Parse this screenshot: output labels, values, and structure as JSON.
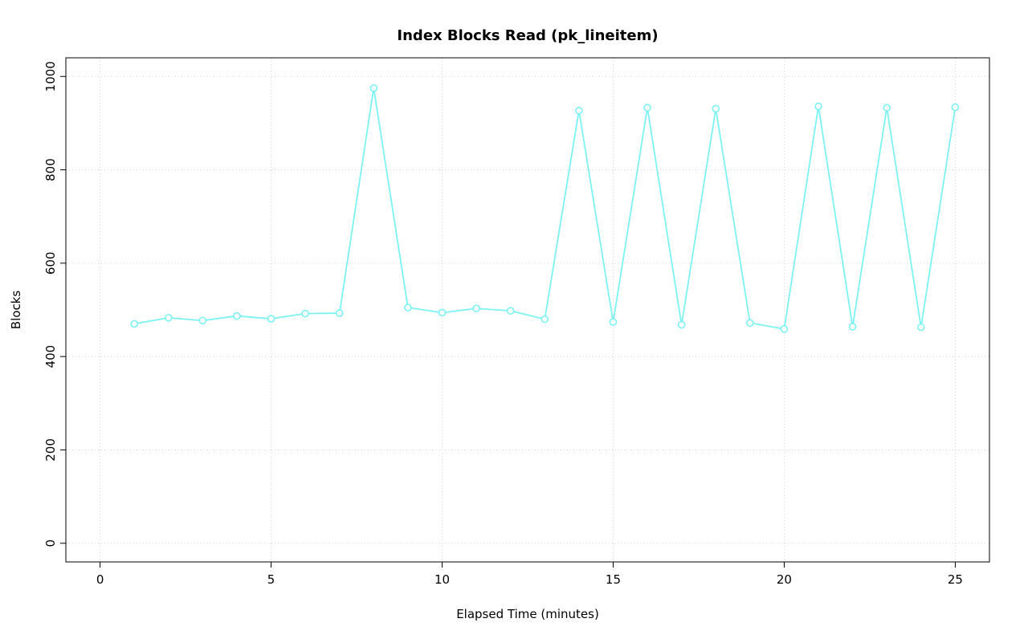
{
  "chart_data": {
    "type": "line",
    "title": "Index Blocks Read (pk_lineitem)",
    "xlabel": "Elapsed Time (minutes)",
    "ylabel": "Blocks",
    "x": [
      1,
      2,
      3,
      4,
      5,
      6,
      7,
      8,
      9,
      10,
      11,
      12,
      13,
      14,
      15,
      16,
      17,
      18,
      19,
      20,
      21,
      22,
      23,
      24,
      25
    ],
    "y": [
      470,
      483,
      477,
      487,
      481,
      492,
      493,
      975,
      505,
      494,
      503,
      498,
      480,
      927,
      474,
      933,
      468,
      931,
      472,
      459,
      936,
      464,
      933,
      463,
      934
    ],
    "xlim": [
      0,
      25
    ],
    "ylim": [
      0,
      1000
    ],
    "xticks": [
      0,
      5,
      10,
      15,
      20,
      25
    ],
    "yticks": [
      0,
      200,
      400,
      600,
      800,
      1000
    ],
    "grid": true,
    "legend": "none",
    "series_color": "#7DF2F2",
    "grid_color": "#D3D3D3",
    "box_color": "#000000",
    "text_color": "#000000",
    "marker": "open-circle",
    "line_style": "points-and-segments"
  }
}
